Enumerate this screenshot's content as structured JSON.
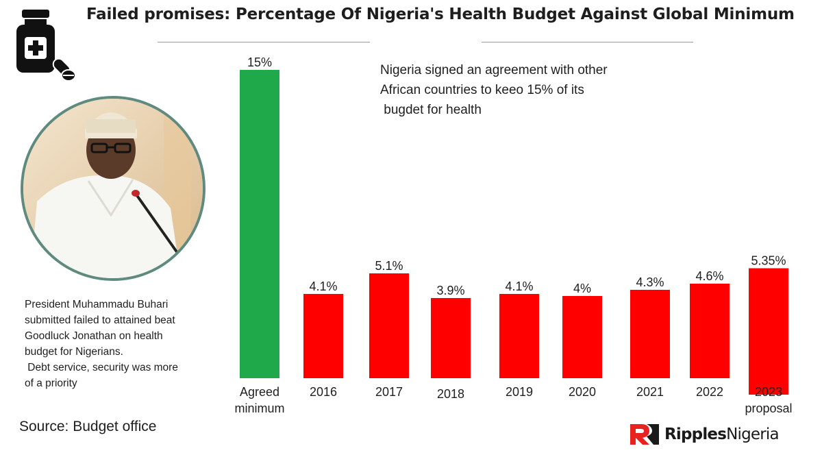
{
  "header": {
    "title": "Failed promises: Percentage Of Nigeria's Health Budget Against Global Minimum"
  },
  "annotation": {
    "lines": [
      "Nigeria signed an agreement with other",
      "African countries to keeo 15% of its",
      " bugdet for health"
    ]
  },
  "caption": {
    "lines": [
      "President Muhammadu Buhari",
      "submitted failed to attained beat",
      "Goodluck Jonathan on health",
      "budget for Nigerians.",
      " Debt service, security was more",
      "of a priority"
    ]
  },
  "footer": {
    "source": "Source: Budget office",
    "brand_part1": "Ripples",
    "brand_part2": "Nigeria"
  },
  "colors": {
    "agreed_bar": "#20a94b",
    "budget_bar": "#fe0000",
    "photo_border": "#5f8a80",
    "brand_red": "#e8231f"
  },
  "icons": [
    "medicine-bottle-icon",
    "pill-capsule-icon",
    "ripples-logo-icon"
  ],
  "chart_data": {
    "type": "bar",
    "categories": [
      [
        "Agreed",
        "minimum"
      ],
      [
        "2016"
      ],
      [
        "2017"
      ],
      [
        "2018"
      ],
      [
        "2019"
      ],
      [
        "2020"
      ],
      [
        "2021"
      ],
      [
        "2022"
      ],
      [
        "2023",
        "proposal"
      ]
    ],
    "values": [
      15,
      4.1,
      5.1,
      3.9,
      4.1,
      4.0,
      4.3,
      4.6,
      5.35
    ],
    "labels": [
      "15%",
      "4.1%",
      "5.1%",
      "3.9%",
      "4.1%",
      "4%",
      "4.3%",
      "4.6%",
      "5.35%"
    ],
    "bar_colors": [
      "#20a94b",
      "#fe0000",
      "#fe0000",
      "#fe0000",
      "#fe0000",
      "#fe0000",
      "#fe0000",
      "#fe0000",
      "#fe0000"
    ],
    "title": "",
    "xlabel": "",
    "ylabel": "",
    "grid": false,
    "legend": "none"
  }
}
